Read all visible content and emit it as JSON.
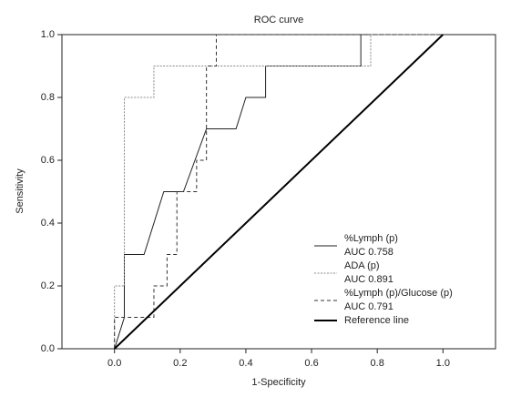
{
  "chart_data": {
    "type": "line",
    "title": "ROC curve",
    "x_label": "1-Specificity",
    "y_label": "Sensitivity",
    "xlim": [
      -0.16,
      1.16
    ],
    "ylim": [
      0,
      1
    ],
    "xticks": [
      {
        "value": 0,
        "label": "0.0"
      },
      {
        "value": 0.2,
        "label": "0.2"
      },
      {
        "value": 0.4,
        "label": "0.4"
      },
      {
        "value": 0.6,
        "label": "0.6"
      },
      {
        "value": 0.8,
        "label": "0.8"
      },
      {
        "value": 1,
        "label": "1.0"
      }
    ],
    "yticks": [
      {
        "value": 0,
        "label": "0.0"
      },
      {
        "value": 0.2,
        "label": "0.2"
      },
      {
        "value": 0.4,
        "label": "0.4"
      },
      {
        "value": 0.6,
        "label": "0.6"
      },
      {
        "value": 0.8,
        "label": "0.8"
      },
      {
        "value": 1,
        "label": "1.0"
      }
    ],
    "series": [
      {
        "name": "%Lymph (p)",
        "auc_label": "AUC 0.758",
        "color": "#222222",
        "style": "solid",
        "x": [
          0,
          0.03,
          0.03,
          0.09,
          0.15,
          0.21,
          0.28,
          0.37,
          0.4,
          0.46,
          0.46,
          0.75,
          0.75,
          1
        ],
        "values": [
          0,
          0.1,
          0.3,
          0.3,
          0.5,
          0.5,
          0.7,
          0.7,
          0.8,
          0.8,
          0.9,
          0.9,
          1,
          1
        ]
      },
      {
        "name": "ADA (p)",
        "auc_label": "AUC 0.891",
        "color": "#888888",
        "style": "dotted",
        "x": [
          0,
          0,
          0.03,
          0.03,
          0.12,
          0.12,
          0.78,
          0.78,
          1
        ],
        "values": [
          0,
          0.2,
          0.2,
          0.8,
          0.8,
          0.9,
          0.9,
          1,
          1
        ]
      },
      {
        "name": "%Lymph (p)/Glucose (p)",
        "auc_label": "AUC 0.791",
        "color": "#333333",
        "style": "dashed",
        "x": [
          0,
          0,
          0.12,
          0.12,
          0.16,
          0.16,
          0.19,
          0.19,
          0.25,
          0.25,
          0.28,
          0.28,
          0.31,
          0.31,
          1
        ],
        "values": [
          0,
          0.1,
          0.1,
          0.2,
          0.2,
          0.3,
          0.3,
          0.5,
          0.5,
          0.6,
          0.6,
          0.9,
          0.9,
          1,
          1
        ]
      },
      {
        "name": "Reference line",
        "color": "#000000",
        "style": "thick",
        "x": [
          0,
          1
        ],
        "values": [
          0,
          1
        ]
      }
    ]
  }
}
